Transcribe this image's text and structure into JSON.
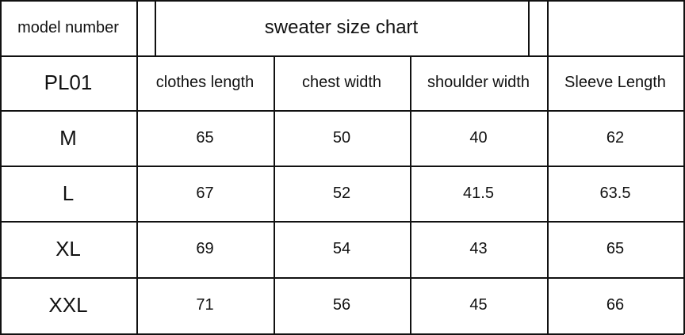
{
  "table": {
    "model_label": "model number",
    "title": "sweater size chart",
    "model": "PL01",
    "headers": [
      "clothes length",
      "chest width",
      "shoulder width",
      "Sleeve Length"
    ],
    "rows": [
      {
        "size": "M",
        "values": [
          "65",
          "50",
          "40",
          "62"
        ]
      },
      {
        "size": "L",
        "values": [
          "67",
          "52",
          "41.5",
          "63.5"
        ]
      },
      {
        "size": "XL",
        "values": [
          "69",
          "54",
          "43",
          "65"
        ]
      },
      {
        "size": "XXL",
        "values": [
          "71",
          "56",
          "45",
          "66"
        ]
      }
    ]
  }
}
